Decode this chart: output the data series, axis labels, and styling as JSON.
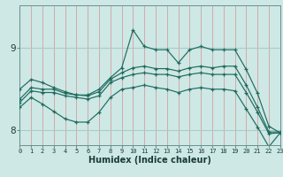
{
  "xlabel": "Humidex (Indice chaleur)",
  "background_color": "#cde8e5",
  "vgrid_color": "#d4a0a0",
  "hgrid_color": "#aacaca",
  "line_color": "#1e6b5e",
  "x_ticks": [
    0,
    1,
    2,
    3,
    4,
    5,
    6,
    7,
    8,
    9,
    10,
    11,
    12,
    13,
    14,
    15,
    16,
    17,
    18,
    19,
    20,
    21,
    22,
    23
  ],
  "y_ticks": [
    8,
    9
  ],
  "ylim": [
    7.82,
    9.52
  ],
  "xlim": [
    0,
    23
  ],
  "series1": [
    8.5,
    8.62,
    8.58,
    8.52,
    8.47,
    8.43,
    8.43,
    8.5,
    8.64,
    8.76,
    9.22,
    9.02,
    8.98,
    8.98,
    8.82,
    8.98,
    9.02,
    8.98,
    8.98,
    8.98,
    8.74,
    8.45,
    8.05,
    7.97
  ],
  "series2": [
    8.38,
    8.52,
    8.5,
    8.5,
    8.45,
    8.43,
    8.42,
    8.47,
    8.62,
    8.7,
    8.76,
    8.78,
    8.75,
    8.75,
    8.72,
    8.76,
    8.78,
    8.76,
    8.78,
    8.78,
    8.55,
    8.28,
    7.98,
    7.98
  ],
  "series3": [
    8.34,
    8.48,
    8.46,
    8.46,
    8.42,
    8.4,
    8.38,
    8.42,
    8.58,
    8.64,
    8.68,
    8.7,
    8.68,
    8.68,
    8.65,
    8.68,
    8.7,
    8.68,
    8.68,
    8.68,
    8.46,
    8.22,
    7.96,
    7.97
  ],
  "series4": [
    8.28,
    8.4,
    8.32,
    8.23,
    8.14,
    8.1,
    8.1,
    8.22,
    8.4,
    8.5,
    8.52,
    8.55,
    8.52,
    8.5,
    8.46,
    8.5,
    8.52,
    8.5,
    8.5,
    8.48,
    8.26,
    8.04,
    7.8,
    7.97
  ]
}
